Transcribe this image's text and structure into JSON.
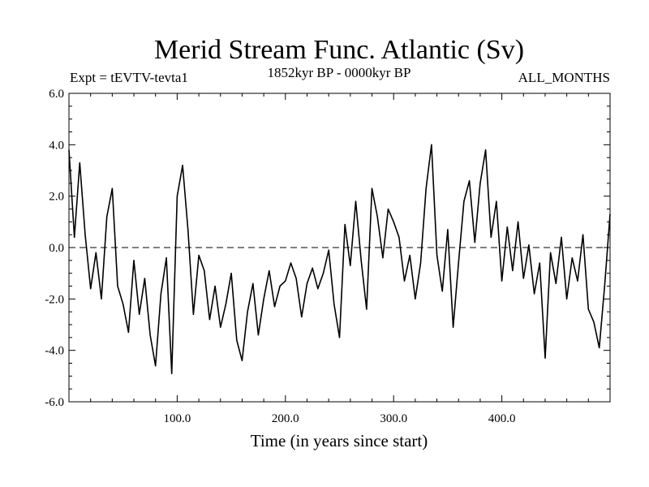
{
  "chart_data": {
    "type": "line",
    "title": "Merid Stream Func. Atlantic (Sv)",
    "subtitle_left": "Expt = tEVTV-tevta1",
    "subtitle_center": "1852kyr BP - 0000kyr BP",
    "subtitle_right": "ALL_MONTHS",
    "xlabel": "Time (in years since start)",
    "ylabel": "",
    "xlim": [
      0,
      500
    ],
    "ylim": [
      -6,
      6
    ],
    "x_ticks": [
      100,
      200,
      300,
      400
    ],
    "x_tick_labels": [
      "100.0",
      "200.0",
      "300.0",
      "400.0"
    ],
    "y_ticks": [
      -6,
      -4,
      -2,
      0,
      2,
      4,
      6
    ],
    "y_tick_labels": [
      "-6.0",
      "-4.0",
      "-2.0",
      "0.0",
      "2.0",
      "4.0",
      "6.0"
    ],
    "reference_line": 0,
    "series": [
      {
        "name": "Merid Stream Func. Atlantic",
        "x": [
          0,
          5,
          10,
          15,
          20,
          25,
          30,
          35,
          40,
          45,
          50,
          55,
          60,
          65,
          70,
          75,
          80,
          85,
          90,
          95,
          100,
          105,
          110,
          115,
          120,
          125,
          130,
          135,
          140,
          145,
          150,
          155,
          160,
          165,
          170,
          175,
          180,
          185,
          190,
          195,
          200,
          205,
          210,
          215,
          220,
          225,
          230,
          235,
          240,
          245,
          250,
          255,
          260,
          265,
          270,
          275,
          280,
          285,
          290,
          295,
          300,
          305,
          310,
          315,
          320,
          325,
          330,
          335,
          340,
          345,
          350,
          355,
          360,
          365,
          370,
          375,
          380,
          385,
          390,
          395,
          400,
          405,
          410,
          415,
          420,
          425,
          430,
          435,
          440,
          445,
          450,
          455,
          460,
          465,
          470,
          475,
          480,
          485,
          490,
          495,
          500
        ],
        "values": [
          3.8,
          0.4,
          3.3,
          0.5,
          -1.6,
          -0.2,
          -2.0,
          1.2,
          2.3,
          -1.5,
          -2.2,
          -3.3,
          -0.5,
          -2.6,
          -1.2,
          -3.4,
          -4.6,
          -1.8,
          -0.4,
          -4.9,
          2.0,
          3.2,
          0.7,
          -2.6,
          -0.3,
          -0.9,
          -2.8,
          -1.5,
          -3.1,
          -2.2,
          -1.0,
          -3.6,
          -4.4,
          -2.5,
          -1.4,
          -3.4,
          -2.0,
          -0.9,
          -2.3,
          -1.5,
          -1.3,
          -0.6,
          -1.2,
          -2.7,
          -1.4,
          -0.8,
          -1.6,
          -1.0,
          -0.1,
          -2.2,
          -3.5,
          0.9,
          -0.7,
          1.8,
          -0.5,
          -2.4,
          2.3,
          1.2,
          -0.4,
          1.5,
          1.0,
          0.4,
          -1.3,
          -0.3,
          -2.0,
          -0.6,
          2.3,
          4.0,
          -0.3,
          -1.7,
          0.7,
          -3.1,
          -0.6,
          1.8,
          2.6,
          0.2,
          2.5,
          3.8,
          0.4,
          1.8,
          -1.3,
          0.8,
          -0.9,
          1.0,
          -1.2,
          0.1,
          -1.8,
          -0.6,
          -4.3,
          -0.2,
          -1.4,
          0.4,
          -2.0,
          -0.4,
          -1.3,
          0.5,
          -2.4,
          -2.9,
          -3.9,
          -1.5,
          1.3
        ]
      }
    ]
  }
}
